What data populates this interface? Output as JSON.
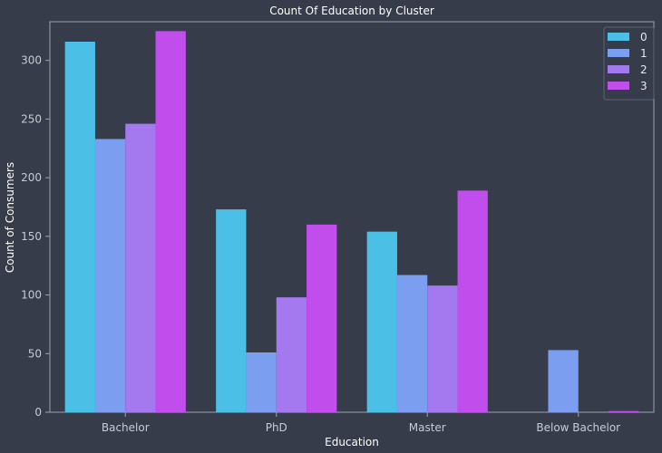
{
  "chart_data": {
    "type": "bar",
    "title": "Count Of Education by Cluster",
    "xlabel": "Education",
    "ylabel": "Count of Consumers",
    "categories": [
      "Bachelor",
      "PhD",
      "Master",
      "Below Bachelor"
    ],
    "series": [
      {
        "name": "0",
        "color": "#4bbfe6",
        "values": [
          316,
          173,
          154,
          0
        ]
      },
      {
        "name": "1",
        "color": "#7b9ef0",
        "values": [
          233,
          51,
          117,
          53
        ]
      },
      {
        "name": "2",
        "color": "#a479ef",
        "values": [
          246,
          98,
          108,
          0
        ]
      },
      {
        "name": "3",
        "color": "#c14ded",
        "values": [
          325,
          160,
          189,
          1
        ]
      }
    ],
    "ylim": [
      0,
      333
    ],
    "yticks": [
      "0",
      "50",
      "100",
      "150",
      "200",
      "250",
      "300"
    ],
    "grid": false,
    "legend_position": "top-right"
  },
  "colors": {
    "background": "#363c4a",
    "axis_frame": "#9aa3b3"
  }
}
